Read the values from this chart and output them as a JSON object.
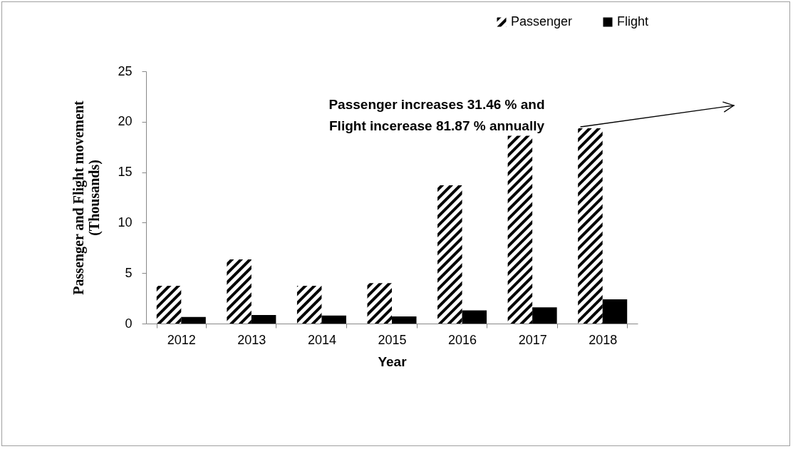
{
  "chart_data": {
    "type": "bar",
    "categories": [
      "2012",
      "2013",
      "2014",
      "2015",
      "2016",
      "2017",
      "2018"
    ],
    "xlabel": "Year",
    "ylabel": "Passenger and Flight movement\n(Thousands)",
    "series": [
      {
        "name": "Passenger",
        "color": "#000000",
        "values": [
          3.74,
          6.35,
          3.74,
          4.0,
          13.7,
          18.6,
          19.35
        ]
      },
      {
        "name": "Flight",
        "color": "#000000",
        "values": [
          0.65,
          0.85,
          0.8,
          0.7,
          1.3,
          1.6,
          2.4
        ]
      }
    ],
    "ylim": [
      0,
      25
    ],
    "yticks": [
      0,
      5,
      10,
      15,
      20,
      25
    ],
    "annotations": [
      "Passenger increases 31.46 % and\nFlight incerease 81.87 % annually"
    ],
    "legend": "top right",
    "grid": false
  }
}
